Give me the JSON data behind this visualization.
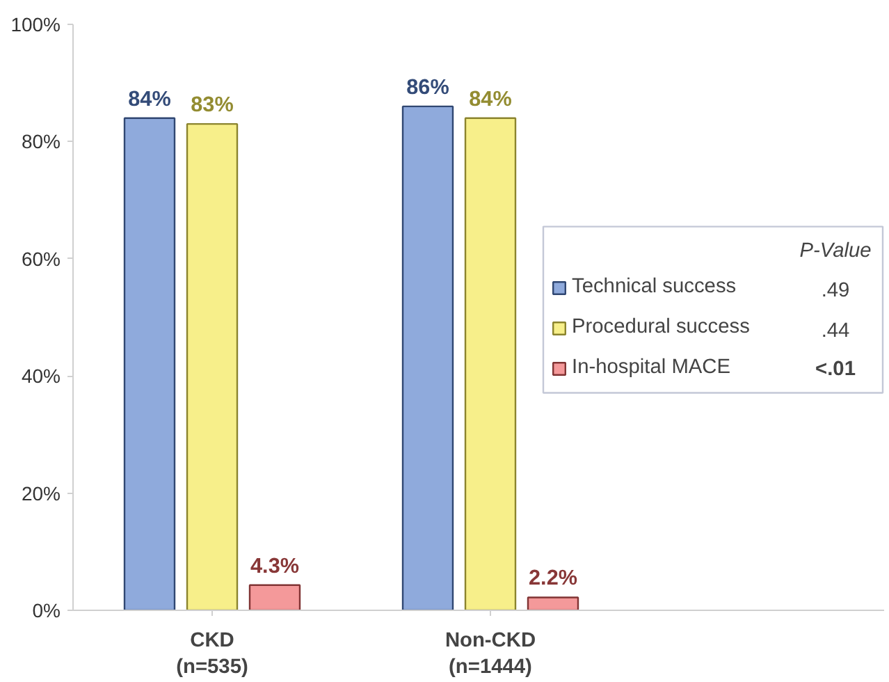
{
  "chart_data": {
    "type": "bar",
    "categories": [
      "CKD\n(n=535)",
      "Non-CKD\n(n=1444)"
    ],
    "series": [
      {
        "name": "Technical success",
        "color": "#8faadc",
        "values": [
          84,
          86
        ],
        "value_labels": [
          "84%",
          "86%"
        ]
      },
      {
        "name": "Procedural success",
        "color": "#f7ef8a",
        "values": [
          83,
          84
        ],
        "value_labels": [
          "83%",
          "84%"
        ]
      },
      {
        "name": "In-hospital MACE",
        "color": "#f4999a",
        "values": [
          4.3,
          2.2
        ],
        "value_labels": [
          "4.3%",
          "2.2%"
        ]
      }
    ],
    "ylim": [
      0,
      100
    ],
    "yticks": [
      {
        "value": 0,
        "label": "0%"
      },
      {
        "value": 20,
        "label": "20%"
      },
      {
        "value": 40,
        "label": "40%"
      },
      {
        "value": 60,
        "label": "60%"
      },
      {
        "value": 80,
        "label": "80%"
      },
      {
        "value": 100,
        "label": "100%"
      }
    ],
    "legend_title": "P-Value",
    "annotations": [
      ".49",
      ".44",
      "<.01"
    ],
    "legend": "right",
    "grid": false
  }
}
